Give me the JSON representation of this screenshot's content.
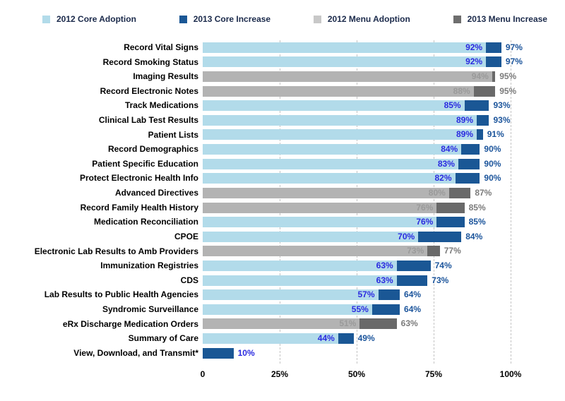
{
  "chart_data": {
    "type": "bar",
    "orientation": "horizontal",
    "title": "",
    "series_legend": [
      {
        "label": "2012 Core Adoption",
        "color": "#b2dbea"
      },
      {
        "label": "2013 Core Increase",
        "color": "#1a5795"
      },
      {
        "label": "2012 Menu Adoption",
        "color": "#c8c8c8"
      },
      {
        "label": "2013 Menu Increase",
        "color": "#6e6e6e"
      }
    ],
    "colors": {
      "core_2012": "#b2dbea",
      "core_2013": "#1a5795",
      "menu_2012": "#b3b3b3",
      "menu_2013": "#696969",
      "label_core_2012": "#2b2be0",
      "label_core_2013": "#1b549b",
      "label_menu_2012": "#9a9a9a",
      "label_menu_2013": "#7b7b7b",
      "legend_text": "#1b2a4b",
      "gridline": "#c4c4c4",
      "axis_text": "#000000",
      "background": "#ffffff"
    },
    "axis": {
      "ticks": [
        "0",
        "25%",
        "50%",
        "75%",
        "100%"
      ],
      "tick_values": [
        0,
        25,
        50,
        75,
        100
      ],
      "xlim": [
        0,
        100
      ],
      "gridlines": "dashed-vertical"
    },
    "rows": [
      {
        "label": "Record Vital Signs",
        "group": "core",
        "value_2012": 92,
        "value_2013": 97
      },
      {
        "label": "Record Smoking Status",
        "group": "core",
        "value_2012": 92,
        "value_2013": 97
      },
      {
        "label": "Imaging Results",
        "group": "menu",
        "value_2012": 94,
        "value_2013": 95
      },
      {
        "label": "Record Electronic Notes",
        "group": "menu",
        "value_2012": 88,
        "value_2013": 95
      },
      {
        "label": "Track Medications",
        "group": "core",
        "value_2012": 85,
        "value_2013": 93
      },
      {
        "label": "Clinical Lab Test Results",
        "group": "core",
        "value_2012": 89,
        "value_2013": 93
      },
      {
        "label": "Patient Lists",
        "group": "core",
        "value_2012": 89,
        "value_2013": 91
      },
      {
        "label": "Record Demographics",
        "group": "core",
        "value_2012": 84,
        "value_2013": 90
      },
      {
        "label": "Patient Specific Education",
        "group": "core",
        "value_2012": 83,
        "value_2013": 90
      },
      {
        "label": "Protect Electronic Health Info",
        "group": "core",
        "value_2012": 82,
        "value_2013": 90
      },
      {
        "label": "Advanced Directives",
        "group": "menu",
        "value_2012": 80,
        "value_2013": 87
      },
      {
        "label": "Record Family Health History",
        "group": "menu",
        "value_2012": 76,
        "value_2013": 85
      },
      {
        "label": "Medication Reconciliation",
        "group": "core",
        "value_2012": 76,
        "value_2013": 85
      },
      {
        "label": "CPOE",
        "group": "core",
        "value_2012": 70,
        "value_2013": 84
      },
      {
        "label": "Electronic Lab Results to Amb Providers",
        "group": "menu",
        "value_2012": 73,
        "value_2013": 77
      },
      {
        "label": "Immunization Registries",
        "group": "core",
        "value_2012": 63,
        "value_2013": 74
      },
      {
        "label": "CDS",
        "group": "core",
        "value_2012": 63,
        "value_2013": 73
      },
      {
        "label": "Lab Results to Public Health Agencies",
        "group": "core",
        "value_2012": 57,
        "value_2013": 64
      },
      {
        "label": "Syndromic Surveillance",
        "group": "core",
        "value_2012": 55,
        "value_2013": 64
      },
      {
        "label": "eRx Discharge Medication Orders",
        "group": "menu",
        "value_2012": 51,
        "value_2013": 63
      },
      {
        "label": "Summary of Care",
        "group": "core",
        "value_2012": 44,
        "value_2013": 49
      },
      {
        "label": "View, Download, and Transmit*",
        "group": "core",
        "value_2012": null,
        "value_2013": 10
      }
    ]
  }
}
